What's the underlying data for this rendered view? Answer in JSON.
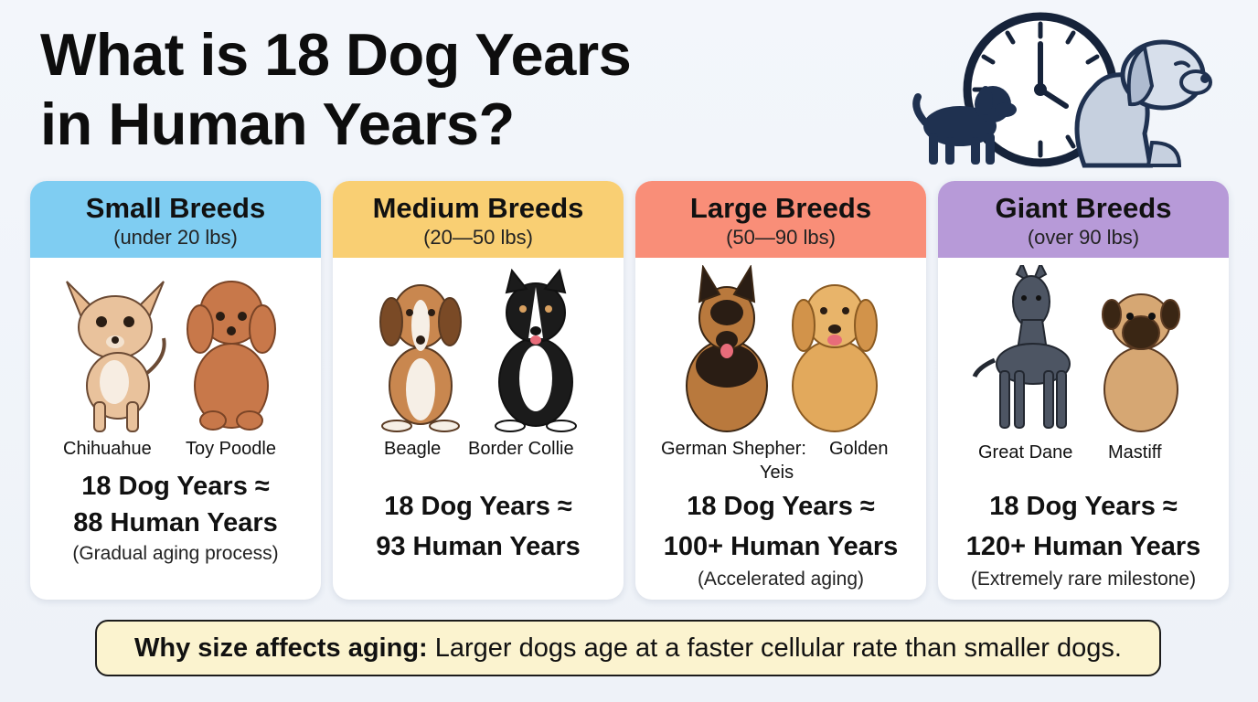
{
  "title": {
    "line1": "What is 18 Dog Years",
    "line2": "in Human Years?"
  },
  "colors": {
    "small": "#7fcdf2",
    "medium": "#f9cf73",
    "large": "#f98e78",
    "giant": "#b79ad8",
    "footer_bg": "#fbf3cf"
  },
  "hero": {
    "icons": [
      "puppy-icon",
      "clock-icon",
      "senior-dog-icon"
    ]
  },
  "cards": [
    {
      "title": "Small Breeds",
      "range": "(under 20 lbs)",
      "dogs": [
        "Chihuahue",
        "Toy Poodle"
      ],
      "result_line1": "18 Dog Years ≈",
      "result_line2": "88 Human Years",
      "note": "(Gradual aging process)"
    },
    {
      "title": "Medium Breeds",
      "range": "(20—50 lbs)",
      "dogs": [
        "Beagle",
        "Border Collie"
      ],
      "result_line1": "18 Dog Years ≈",
      "result_line2": "93 Human Years",
      "note": ""
    },
    {
      "title": "Large Breeds",
      "range": "(50—90 lbs)",
      "dogs": [
        "German Shepher:",
        "Golden",
        "Yeis"
      ],
      "result_line1": "18 Dog Years ≈",
      "result_line2": "100+ Human Years",
      "note": "(Accelerated aging)"
    },
    {
      "title": "Giant Breeds",
      "range": "(over 90 lbs)",
      "dogs": [
        "Great Dane",
        "Mastiff"
      ],
      "result_line1": "18 Dog Years ≈",
      "result_line2": "120+ Human Years",
      "note": "(Extremely rare milestone)"
    }
  ],
  "footer": {
    "label": "Why size affects aging:",
    "text": " Larger dogs age at a faster cellular rate than smaller dogs."
  }
}
